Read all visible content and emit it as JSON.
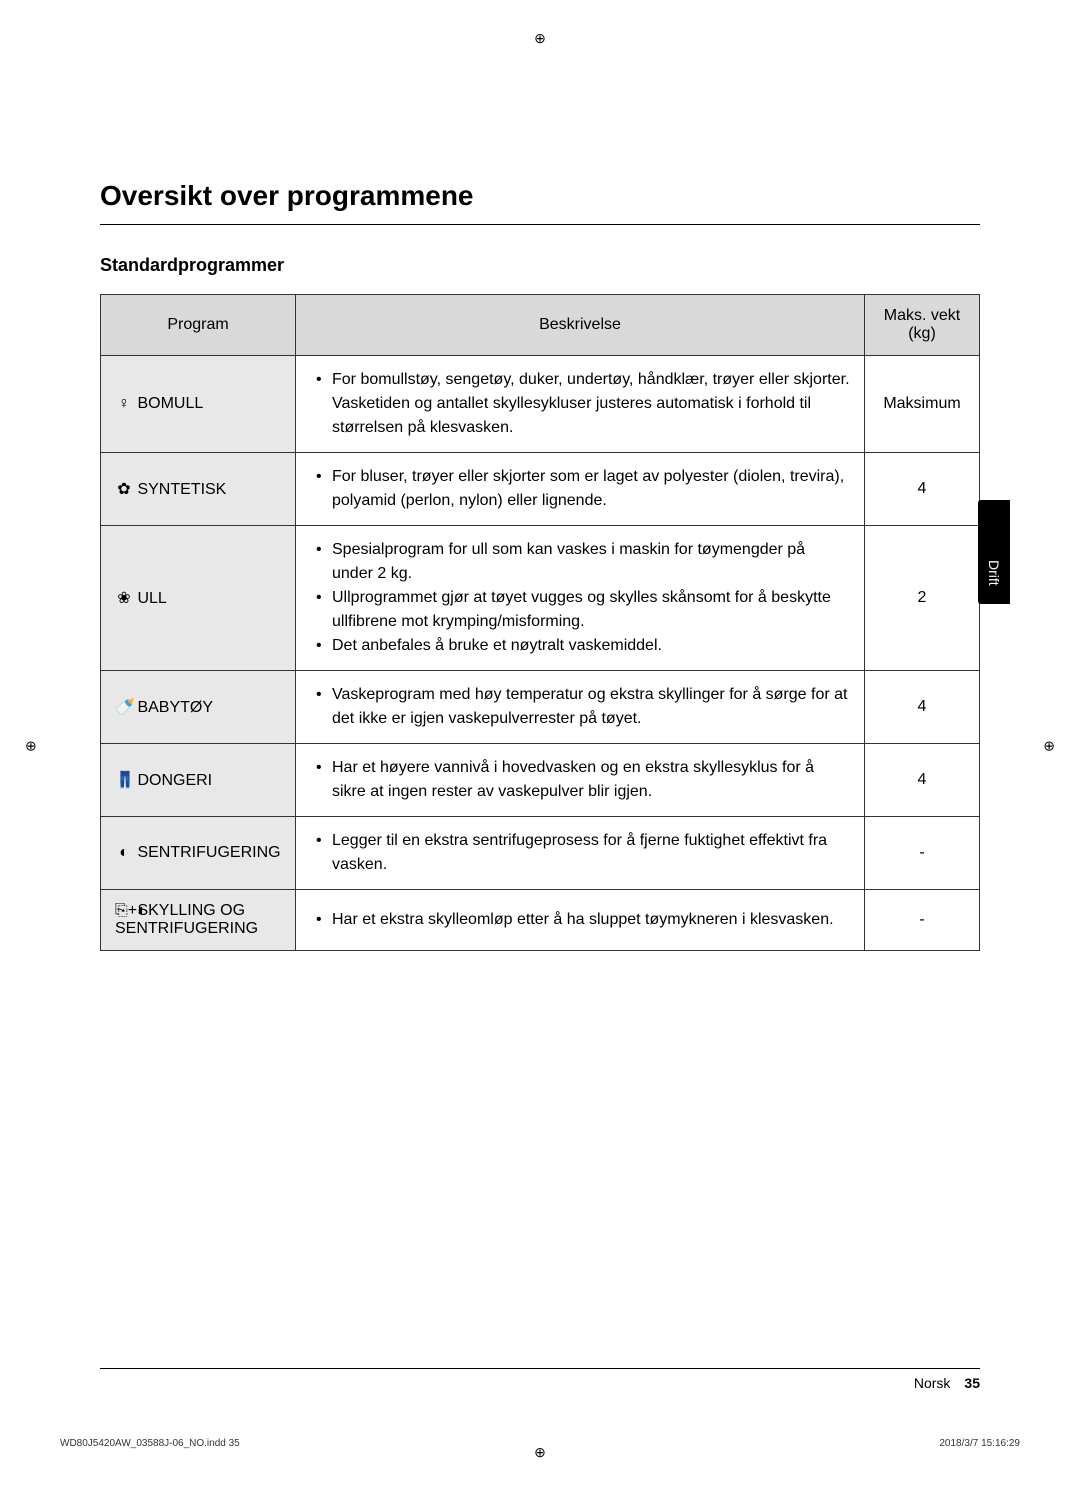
{
  "title": "Oversikt over programmene",
  "subtitle": "Standardprogrammer",
  "side_tab": "Drift",
  "table": {
    "headers": {
      "program": "Program",
      "description": "Beskrivelse",
      "weight": "Maks. vekt (kg)"
    },
    "rows": [
      {
        "icon": "♀",
        "name": "BOMULL",
        "bullets": [
          "For bomullstøy, sengetøy, duker, undertøy, håndklær, trøyer eller skjorter. Vasketiden og antallet skyllesykluser justeres automatisk i forhold til størrelsen på klesvasken."
        ],
        "weight": "Maksimum"
      },
      {
        "icon": "✿",
        "name": "SYNTETISK",
        "bullets": [
          "For bluser, trøyer eller skjorter som er laget av polyester (diolen, trevira), polyamid (perlon, nylon) eller lignende."
        ],
        "weight": "4"
      },
      {
        "icon": "❀",
        "name": "ULL",
        "bullets": [
          "Spesialprogram for ull som kan vaskes i maskin for tøymengder på under 2 kg.",
          "Ullprogrammet gjør at tøyet vugges og skylles skånsomt for å beskytte ullfibrene mot krymping/misforming.",
          "Det anbefales å bruke et nøytralt vaskemiddel."
        ],
        "weight": "2"
      },
      {
        "icon": "🍼",
        "name": "BABYTØY",
        "bullets": [
          "Vaskeprogram med høy temperatur og ekstra skyllinger for å sørge for at det ikke er igjen vaskepulverrester på tøyet."
        ],
        "weight": "4"
      },
      {
        "icon": "👖",
        "name": "DONGERI",
        "bullets": [
          "Har et høyere vannivå i hovedvasken og en ekstra skyllesyklus for å sikre at ingen rester av vaskepulver blir igjen."
        ],
        "weight": "4"
      },
      {
        "icon": "◐",
        "name": "SENTRIFUGERING",
        "bullets": [
          "Legger til en ekstra sentrifugeprosess for å fjerne fuktighet effektivt fra vasken."
        ],
        "weight": "-"
      },
      {
        "icon": "⎘+◐",
        "name": "SKYLLING OG SENTRIFUGERING",
        "bullets": [
          "Har et ekstra skylleomløp etter å ha sluppet tøymykneren i klesvasken."
        ],
        "weight": "-"
      }
    ]
  },
  "footer": {
    "lang": "Norsk",
    "page": "35"
  },
  "print": {
    "left": "WD80J5420AW_03588J-06_NO.indd   35",
    "right": "2018/3/7   15:16:29"
  }
}
